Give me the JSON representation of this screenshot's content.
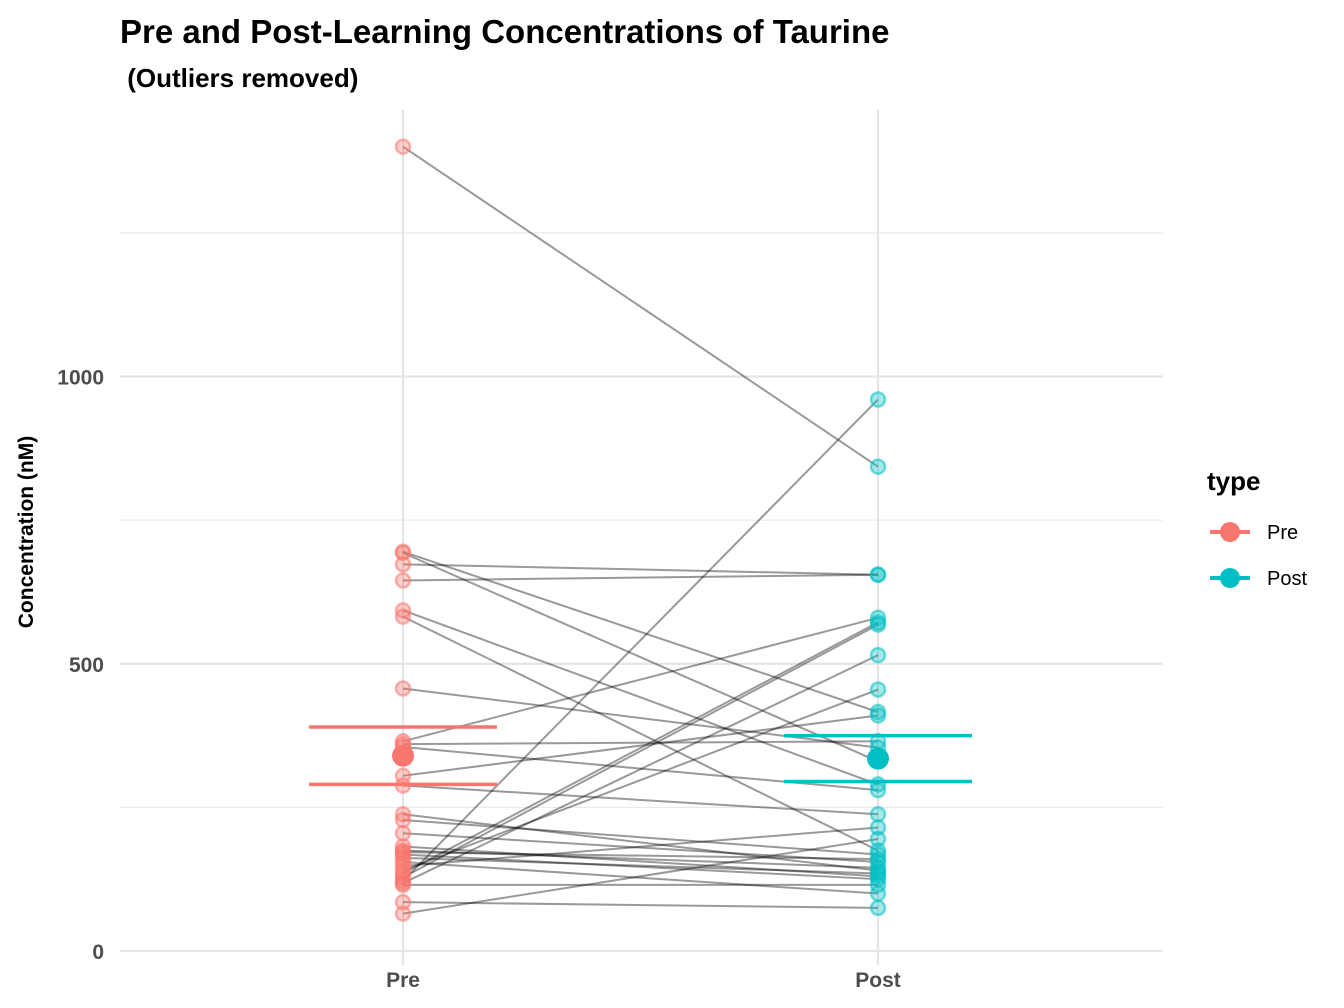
{
  "chart_data": {
    "type": "scatter",
    "title": "Pre and Post-Learning Concentrations of Taurine",
    "subtitle": " (Outliers removed)",
    "xlabel": "",
    "ylabel": "Concentration (nM)",
    "categories": [
      "Pre",
      "Post"
    ],
    "ylim": [
      -15,
      1400
    ],
    "y_ticks": [
      0,
      500,
      1000
    ],
    "y_tick_labels": [
      "0",
      "500",
      "1000"
    ],
    "grid": true,
    "colors": {
      "Pre": "#F8766D",
      "Post": "#00BFC4",
      "line": "#000000"
    },
    "legend": {
      "title": "type",
      "position": "right",
      "entries": [
        "Pre",
        "Post"
      ]
    },
    "pairs": [
      [
        1400,
        843
      ],
      [
        695,
        416
      ],
      [
        693,
        330
      ],
      [
        673,
        655
      ],
      [
        645,
        655
      ],
      [
        593,
        290
      ],
      [
        582,
        175
      ],
      [
        457,
        354
      ],
      [
        365,
        580
      ],
      [
        360,
        365
      ],
      [
        355,
        280
      ],
      [
        305,
        410
      ],
      [
        288,
        238
      ],
      [
        238,
        140
      ],
      [
        228,
        168
      ],
      [
        205,
        155
      ],
      [
        182,
        130
      ],
      [
        175,
        145
      ],
      [
        172,
        160
      ],
      [
        168,
        125
      ],
      [
        162,
        135
      ],
      [
        155,
        100
      ],
      [
        148,
        215
      ],
      [
        140,
        455
      ],
      [
        135,
        572
      ],
      [
        128,
        568
      ],
      [
        122,
        960
      ],
      [
        118,
        515
      ],
      [
        115,
        115
      ],
      [
        85,
        75
      ],
      [
        65,
        195
      ]
    ],
    "summary": [
      {
        "name": "Pre",
        "mean": 340,
        "lower": 290,
        "upper": 390
      },
      {
        "name": "Post",
        "mean": 335,
        "lower": 295,
        "upper": 375
      }
    ]
  }
}
